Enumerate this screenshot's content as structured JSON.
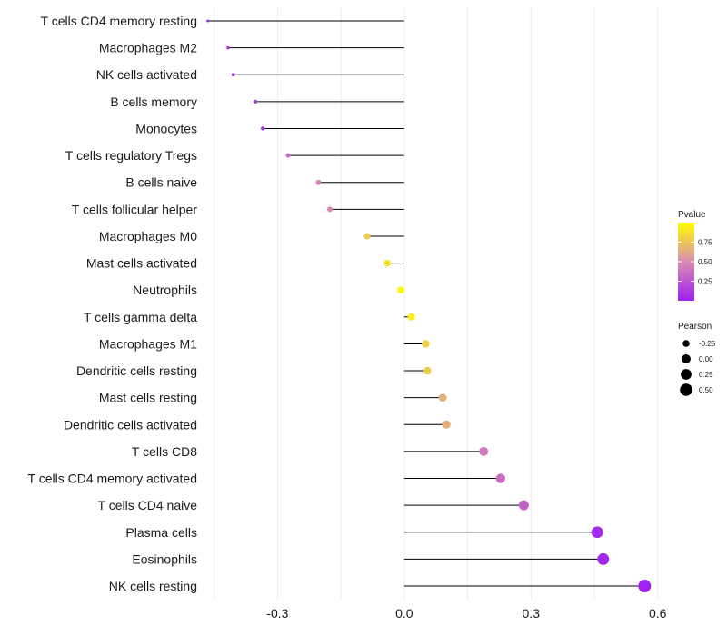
{
  "chart_data": {
    "type": "lollipop",
    "title": "",
    "xlabel": "",
    "ylabel": "",
    "xlim": [
      -0.46,
      0.62
    ],
    "x_ticks": [
      {
        "value": -0.3,
        "label": "-0.3"
      },
      {
        "value": 0.0,
        "label": "0.0"
      },
      {
        "value": 0.3,
        "label": "0.3"
      },
      {
        "value": 0.6,
        "label": "0.6"
      }
    ],
    "categories": [
      "T cells CD4 memory resting",
      "Macrophages M2",
      "NK cells activated",
      "B cells memory",
      "Monocytes",
      "T cells regulatory  Tregs",
      "B cells naive",
      "T cells follicular helper",
      "Macrophages M0",
      "Mast cells activated",
      "Neutrophils",
      "T cells gamma delta",
      "Macrophages M1",
      "Dendritic cells resting",
      "Mast cells resting",
      "Dendritic cells activated",
      "T cells CD8",
      "T cells CD4 memory activated",
      "T cells CD4 naive",
      "Plasma cells",
      "Eosinophils",
      "NK cells resting"
    ],
    "pearson": [
      -0.465,
      -0.417,
      -0.405,
      -0.352,
      -0.335,
      -0.275,
      -0.203,
      -0.176,
      -0.088,
      -0.04,
      -0.008,
      0.017,
      0.051,
      0.055,
      0.091,
      0.1,
      0.188,
      0.228,
      0.283,
      0.457,
      0.471,
      0.569
    ],
    "pvalue": [
      0.02,
      0.05,
      0.06,
      0.12,
      0.13,
      0.35,
      0.45,
      0.48,
      0.78,
      0.88,
      0.98,
      0.93,
      0.8,
      0.78,
      0.66,
      0.65,
      0.42,
      0.35,
      0.3,
      0.05,
      0.04,
      0.01
    ],
    "legend": {
      "color": {
        "title": "Pvalue",
        "ticks": [
          {
            "value": 0.25,
            "label": "0.25"
          },
          {
            "value": 0.5,
            "label": "0.50"
          },
          {
            "value": 0.75,
            "label": "0.75"
          }
        ],
        "range": [
          0.0,
          1.0
        ],
        "low_color": "#a020f0",
        "mid_color": "#d98cb0",
        "high_color": "#ffff00"
      },
      "size": {
        "title": "Pearson",
        "entries": [
          {
            "value": -0.25,
            "label": "-0.25"
          },
          {
            "value": 0.0,
            "label": "0.00"
          },
          {
            "value": 0.25,
            "label": "0.25"
          },
          {
            "value": 0.5,
            "label": "0.50"
          }
        ]
      }
    },
    "grid": true,
    "segment_color": "#000000",
    "grid_color": "#ebebeb"
  }
}
